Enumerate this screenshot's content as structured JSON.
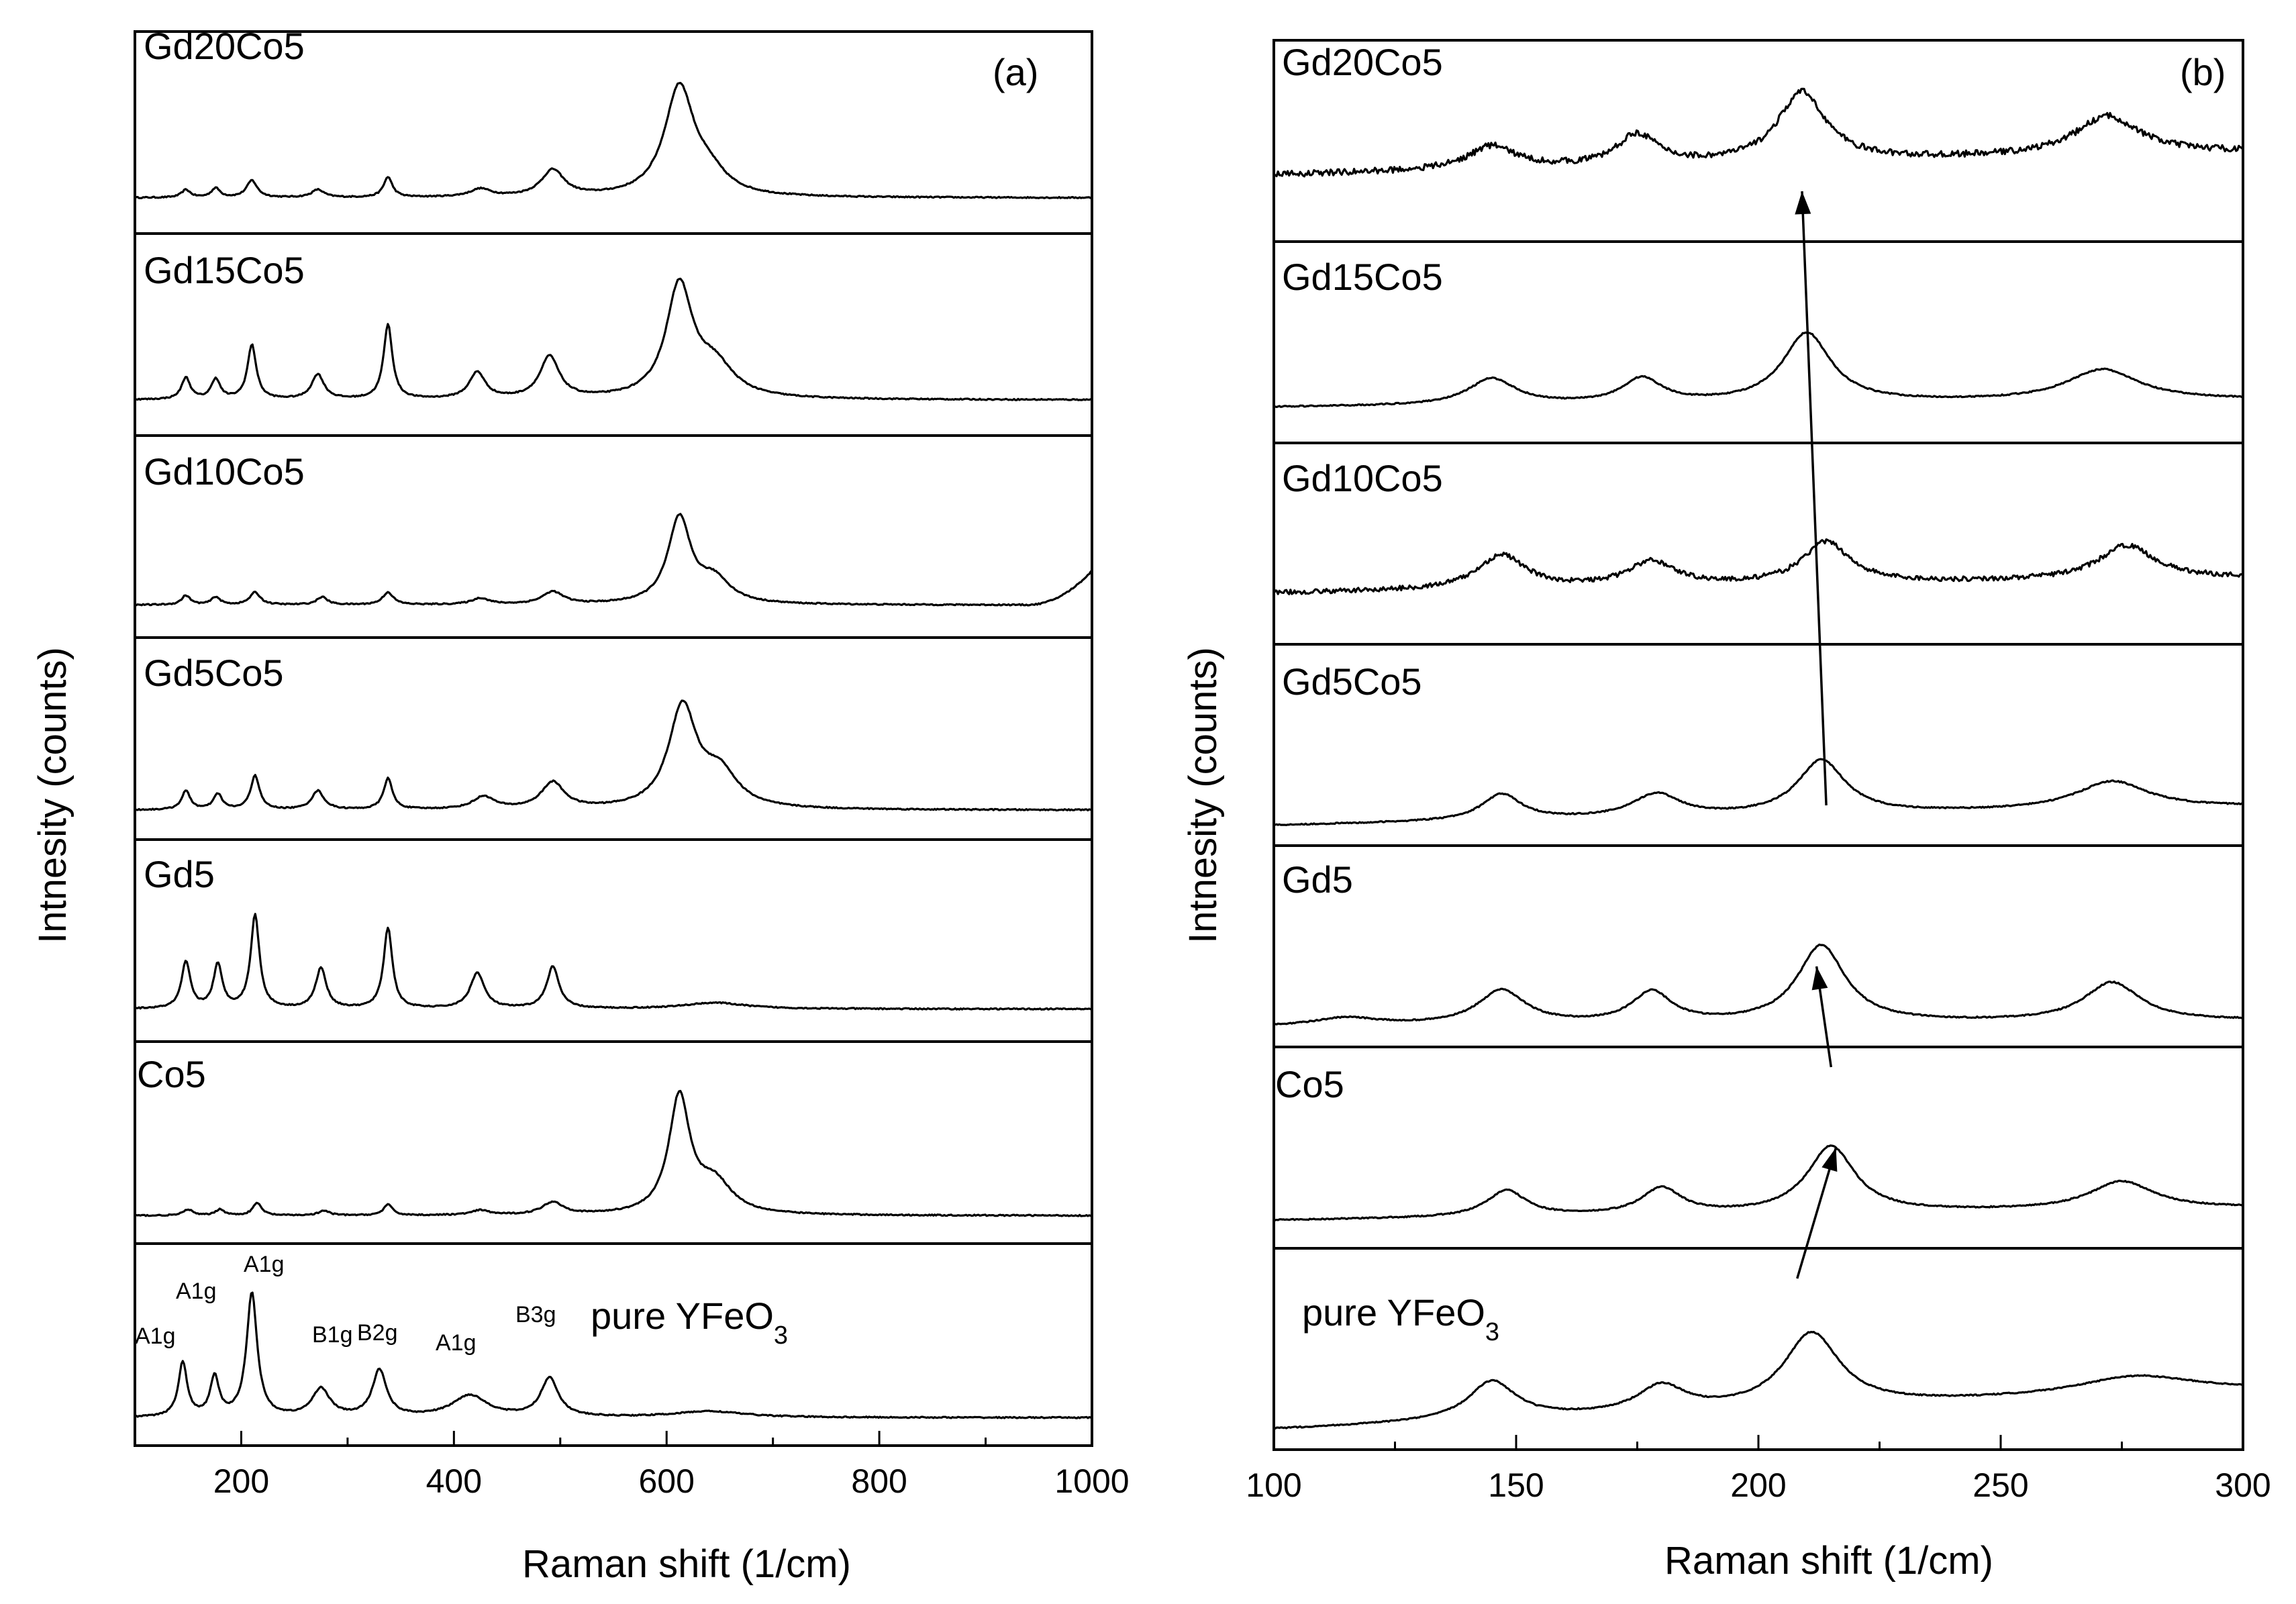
{
  "figure": {
    "panel_a_tag": "(a)",
    "panel_b_tag": "(b)"
  },
  "chart_data": [
    {
      "type": "line",
      "panel": "(a)",
      "title": "",
      "xlabel": "Raman shift (1/cm)",
      "ylabel": "Intnesity (counts)",
      "xlim": [
        100,
        1000
      ],
      "xticks": [
        200,
        400,
        600,
        800,
        1000
      ],
      "stacked": true,
      "series": [
        {
          "name": "Gd20Co5",
          "baseline": 0.1,
          "peaks": [
            [
              148,
              0.05,
              5
            ],
            [
              176,
              0.06,
              5
            ],
            [
              210,
              0.11,
              6
            ],
            [
              272,
              0.05,
              7
            ],
            [
              338,
              0.13,
              5
            ],
            [
              425,
              0.05,
              12
            ],
            [
              493,
              0.17,
              13
            ],
            [
              612,
              0.7,
              17
            ],
            [
              640,
              0.12,
              20
            ]
          ]
        },
        {
          "name": "Gd15Co5",
          "baseline": 0.1,
          "peaks": [
            [
              148,
              0.14,
              5
            ],
            [
              176,
              0.13,
              5
            ],
            [
              210,
              0.35,
              5
            ],
            [
              272,
              0.16,
              7
            ],
            [
              338,
              0.48,
              5
            ],
            [
              422,
              0.17,
              9
            ],
            [
              490,
              0.27,
              11
            ],
            [
              612,
              0.72,
              15
            ],
            [
              645,
              0.2,
              22
            ]
          ]
        },
        {
          "name": "Gd10Co5",
          "baseline": 0.08,
          "peaks": [
            [
              148,
              0.06,
              5
            ],
            [
              176,
              0.05,
              5
            ],
            [
              213,
              0.08,
              6
            ],
            [
              276,
              0.05,
              6
            ],
            [
              338,
              0.08,
              6
            ],
            [
              425,
              0.04,
              10
            ],
            [
              493,
              0.08,
              12
            ],
            [
              612,
              0.55,
              13
            ],
            [
              645,
              0.15,
              18
            ]
          ],
          "end_rise": 0.22
        },
        {
          "name": "Gd5Co5",
          "baseline": 0.06,
          "peaks": [
            [
              148,
              0.12,
              5
            ],
            [
              178,
              0.1,
              5
            ],
            [
              213,
              0.22,
              5
            ],
            [
              272,
              0.12,
              7
            ],
            [
              338,
              0.2,
              5
            ],
            [
              428,
              0.08,
              12
            ],
            [
              493,
              0.17,
              13
            ],
            [
              615,
              0.65,
              16
            ],
            [
              650,
              0.22,
              20
            ]
          ]
        },
        {
          "name": "Gd5",
          "baseline": 0.08,
          "peaks": [
            [
              148,
              0.3,
              5
            ],
            [
              178,
              0.28,
              5
            ],
            [
              213,
              0.6,
              5
            ],
            [
              275,
              0.26,
              6
            ],
            [
              338,
              0.52,
              5
            ],
            [
              422,
              0.23,
              8
            ],
            [
              493,
              0.27,
              7
            ],
            [
              645,
              0.04,
              35
            ]
          ]
        },
        {
          "name": "Co5",
          "baseline": 0.05,
          "peaks": [
            [
              150,
              0.04,
              5
            ],
            [
              180,
              0.04,
              5
            ],
            [
              215,
              0.08,
              5
            ],
            [
              278,
              0.03,
              6
            ],
            [
              338,
              0.07,
              5
            ],
            [
              425,
              0.03,
              10
            ],
            [
              493,
              0.08,
              12
            ],
            [
              612,
              0.75,
              12
            ],
            [
              645,
              0.2,
              20
            ]
          ]
        },
        {
          "name": "pure YFeO3",
          "baseline": 0.05,
          "peaks": [
            [
              145,
              0.35,
              5
            ],
            [
              175,
              0.25,
              5
            ],
            [
              210,
              0.8,
              6
            ],
            [
              275,
              0.18,
              10
            ],
            [
              330,
              0.3,
              8
            ],
            [
              415,
              0.14,
              20
            ],
            [
              490,
              0.25,
              10
            ],
            [
              640,
              0.04,
              40
            ]
          ]
        }
      ],
      "series_labels": [
        {
          "text": "Gd20Co5"
        },
        {
          "text": "Gd15Co5"
        },
        {
          "text": "Gd10Co5"
        },
        {
          "text": "Gd5Co5"
        },
        {
          "text": "Gd5"
        },
        {
          "text": "Co5"
        },
        {
          "text_main": "pure YFeO",
          "text_sub": "3"
        }
      ],
      "annotations": [
        {
          "text": "A1g",
          "x": 145
        },
        {
          "text": "A1g",
          "x": 175
        },
        {
          "text": "A1g",
          "x": 210
        },
        {
          "text": "B1g",
          "x": 280
        },
        {
          "text": "B2g",
          "x": 330
        },
        {
          "text": "A1g",
          "x": 410
        },
        {
          "text": "B3g",
          "x": 490
        }
      ]
    },
    {
      "type": "line",
      "panel": "(b)",
      "title": "",
      "xlabel": "Raman shift (1/cm)",
      "ylabel": "Intnesity (counts)",
      "xlim": [
        100,
        300
      ],
      "xticks": [
        100,
        150,
        200,
        250,
        300
      ],
      "stacked": true,
      "series": [
        {
          "name": "Gd20Co5",
          "baseline": 0.3,
          "slope": 0.15,
          "noise": 0.04,
          "peaks": [
            [
              145,
              0.15,
              6
            ],
            [
              175,
              0.2,
              5
            ],
            [
              209,
              0.45,
              6
            ],
            [
              272,
              0.25,
              8
            ]
          ]
        },
        {
          "name": "Gd15Co5",
          "baseline": 0.1,
          "slope": 0.05,
          "peaks": [
            [
              145,
              0.17,
              6
            ],
            [
              176,
              0.16,
              5
            ],
            [
              210,
              0.45,
              6
            ],
            [
              271,
              0.2,
              9
            ]
          ]
        },
        {
          "name": "Gd10Co5",
          "baseline": 0.2,
          "slope": 0.1,
          "noise": 0.03,
          "peaks": [
            [
              147,
              0.22,
              6
            ],
            [
              178,
              0.16,
              6
            ],
            [
              214,
              0.27,
              6
            ],
            [
              276,
              0.22,
              7
            ]
          ]
        },
        {
          "name": "Gd5Co5",
          "baseline": 0.0,
          "slope": 0.12,
          "peaks": [
            [
              147,
              0.17,
              5
            ],
            [
              179,
              0.15,
              6
            ],
            [
              213,
              0.35,
              6
            ],
            [
              273,
              0.18,
              9
            ]
          ]
        },
        {
          "name": "Gd5",
          "baseline": 0.0,
          "slope": 0.04,
          "peaks": [
            [
              115,
              0.05,
              8
            ],
            [
              147,
              0.22,
              6
            ],
            [
              178,
              0.2,
              5
            ],
            [
              213,
              0.5,
              6
            ],
            [
              273,
              0.25,
              7
            ]
          ]
        },
        {
          "name": "Co5",
          "baseline": 0.05,
          "slope": 0.08,
          "peaks": [
            [
              148,
              0.17,
              5
            ],
            [
              180,
              0.17,
              5
            ],
            [
              215,
              0.43,
              6
            ],
            [
              275,
              0.18,
              8
            ]
          ]
        },
        {
          "name": "pure YFeO3",
          "baseline": 0.0,
          "slope": 0.25,
          "peaks": [
            [
              145,
              0.25,
              6
            ],
            [
              180,
              0.17,
              6
            ],
            [
              211,
              0.48,
              7
            ],
            [
              278,
              0.12,
              15
            ]
          ]
        }
      ],
      "series_labels": [
        {
          "text": "Gd20Co5"
        },
        {
          "text": "Gd15Co5"
        },
        {
          "text": "Gd10Co5"
        },
        {
          "text": "Gd5Co5"
        },
        {
          "text": "Gd5"
        },
        {
          "text": "Co5"
        },
        {
          "text_main": "pure YFeO",
          "text_sub": "3"
        }
      ],
      "arrows": [
        {
          "from": {
            "x": 208,
            "series": "pure YFeO3",
            "level": 0.85
          },
          "to": {
            "x": 216,
            "series": "Co5",
            "level": 0.5
          }
        },
        {
          "from": {
            "x": 215,
            "series": "Co5",
            "level": 0.9
          },
          "to": {
            "x": 212,
            "series": "Gd5",
            "level": 0.4
          }
        },
        {
          "from": {
            "x": 214,
            "series": "Gd5Co5",
            "level": 0.2
          },
          "to": {
            "x": 209,
            "series": "Gd20Co5",
            "level": 0.25
          }
        }
      ]
    }
  ]
}
